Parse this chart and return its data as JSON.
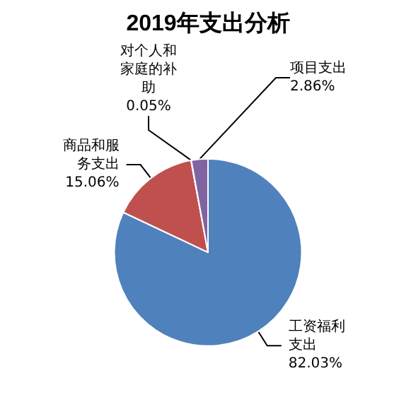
{
  "chart_data": {
    "type": "pie",
    "title": "2019年支出分析",
    "categories": [
      "工资福利支出",
      "商品和服务支出",
      "对个人和家庭的补助",
      "项目支出"
    ],
    "values": [
      82.03,
      15.06,
      0.05,
      2.86
    ],
    "value_labels": [
      "82.03%",
      "15.06%",
      "0.05%",
      "2.86%"
    ],
    "colors": [
      "#4f81bd",
      "#c0504d",
      "#9bbb59",
      "#8064a2"
    ],
    "legend": false
  }
}
